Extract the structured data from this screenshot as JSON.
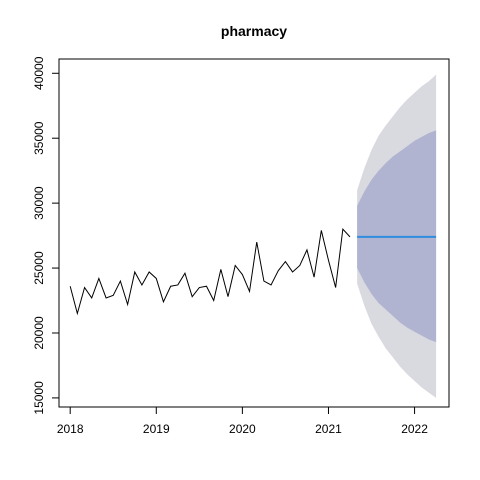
{
  "chart_data": {
    "type": "line",
    "title": "pharmacy",
    "xlabel": "",
    "ylabel": "",
    "xlim": [
      2017.87,
      2022.4
    ],
    "ylim": [
      14300,
      41100
    ],
    "x_ticks": [
      2018,
      2019,
      2020,
      2021,
      2022
    ],
    "x_tick_labels": [
      "2018",
      "2019",
      "2020",
      "2021",
      "2022"
    ],
    "y_ticks": [
      15000,
      20000,
      25000,
      30000,
      35000,
      40000
    ],
    "y_tick_labels": [
      "15000",
      "20000",
      "25000",
      "30000",
      "35000",
      "40000"
    ],
    "grid": false,
    "legend": "none",
    "series": [
      {
        "type": "line",
        "x": [
          2018.0,
          2018.083,
          2018.167,
          2018.25,
          2018.333,
          2018.417,
          2018.5,
          2018.583,
          2018.667,
          2018.75,
          2018.833,
          2018.917,
          2019.0,
          2019.083,
          2019.167,
          2019.25,
          2019.333,
          2019.417,
          2019.5,
          2019.583,
          2019.667,
          2019.75,
          2019.833,
          2019.917,
          2020.0,
          2020.083,
          2020.167,
          2020.25,
          2020.333,
          2020.417,
          2020.5,
          2020.583,
          2020.667,
          2020.75,
          2020.833,
          2020.917,
          2021.0,
          2021.083,
          2021.167,
          2021.25
        ],
        "values": [
          23600,
          21500,
          23500,
          22700,
          24200,
          22700,
          22900,
          24000,
          22200,
          24700,
          23700,
          24700,
          24200,
          22400,
          23600,
          23700,
          24600,
          22800,
          23500,
          23600,
          22500,
          24900,
          22800,
          25200,
          24500,
          23200,
          27000,
          24000,
          23700,
          24800,
          25500,
          24700,
          25200,
          26400,
          24300,
          27900,
          25600,
          23500,
          28000,
          27400
        ],
        "color": "#000000"
      },
      {
        "type": "point-forecast",
        "x": [
          2021.333,
          2022.25
        ],
        "values": [
          27400,
          27400
        ],
        "color": "#2f8cde"
      }
    ],
    "intervals": [
      {
        "name": "95",
        "x": [
          2021.333,
          2021.417,
          2021.5,
          2021.583,
          2021.667,
          2021.75,
          2021.833,
          2021.917,
          2022.0,
          2022.083,
          2022.167,
          2022.25
        ],
        "lower": [
          23800,
          22100,
          20700,
          19700,
          18800,
          18100,
          17400,
          16800,
          16300,
          15800,
          15400,
          15000
        ],
        "upper": [
          31000,
          32700,
          34100,
          35200,
          36000,
          36700,
          37400,
          38000,
          38500,
          39000,
          39400,
          39900
        ],
        "color": "#d9d9e0"
      },
      {
        "name": "80",
        "x": [
          2021.333,
          2021.417,
          2021.5,
          2021.583,
          2021.667,
          2021.75,
          2021.833,
          2021.917,
          2022.0,
          2022.083,
          2022.167,
          2022.25
        ],
        "lower": [
          25000,
          23900,
          23000,
          22300,
          21800,
          21300,
          20800,
          20400,
          20100,
          19800,
          19500,
          19300
        ],
        "upper": [
          29800,
          30900,
          31800,
          32500,
          33100,
          33600,
          34000,
          34400,
          34800,
          35100,
          35400,
          35600
        ],
        "color": "#b1b4d1"
      }
    ]
  }
}
